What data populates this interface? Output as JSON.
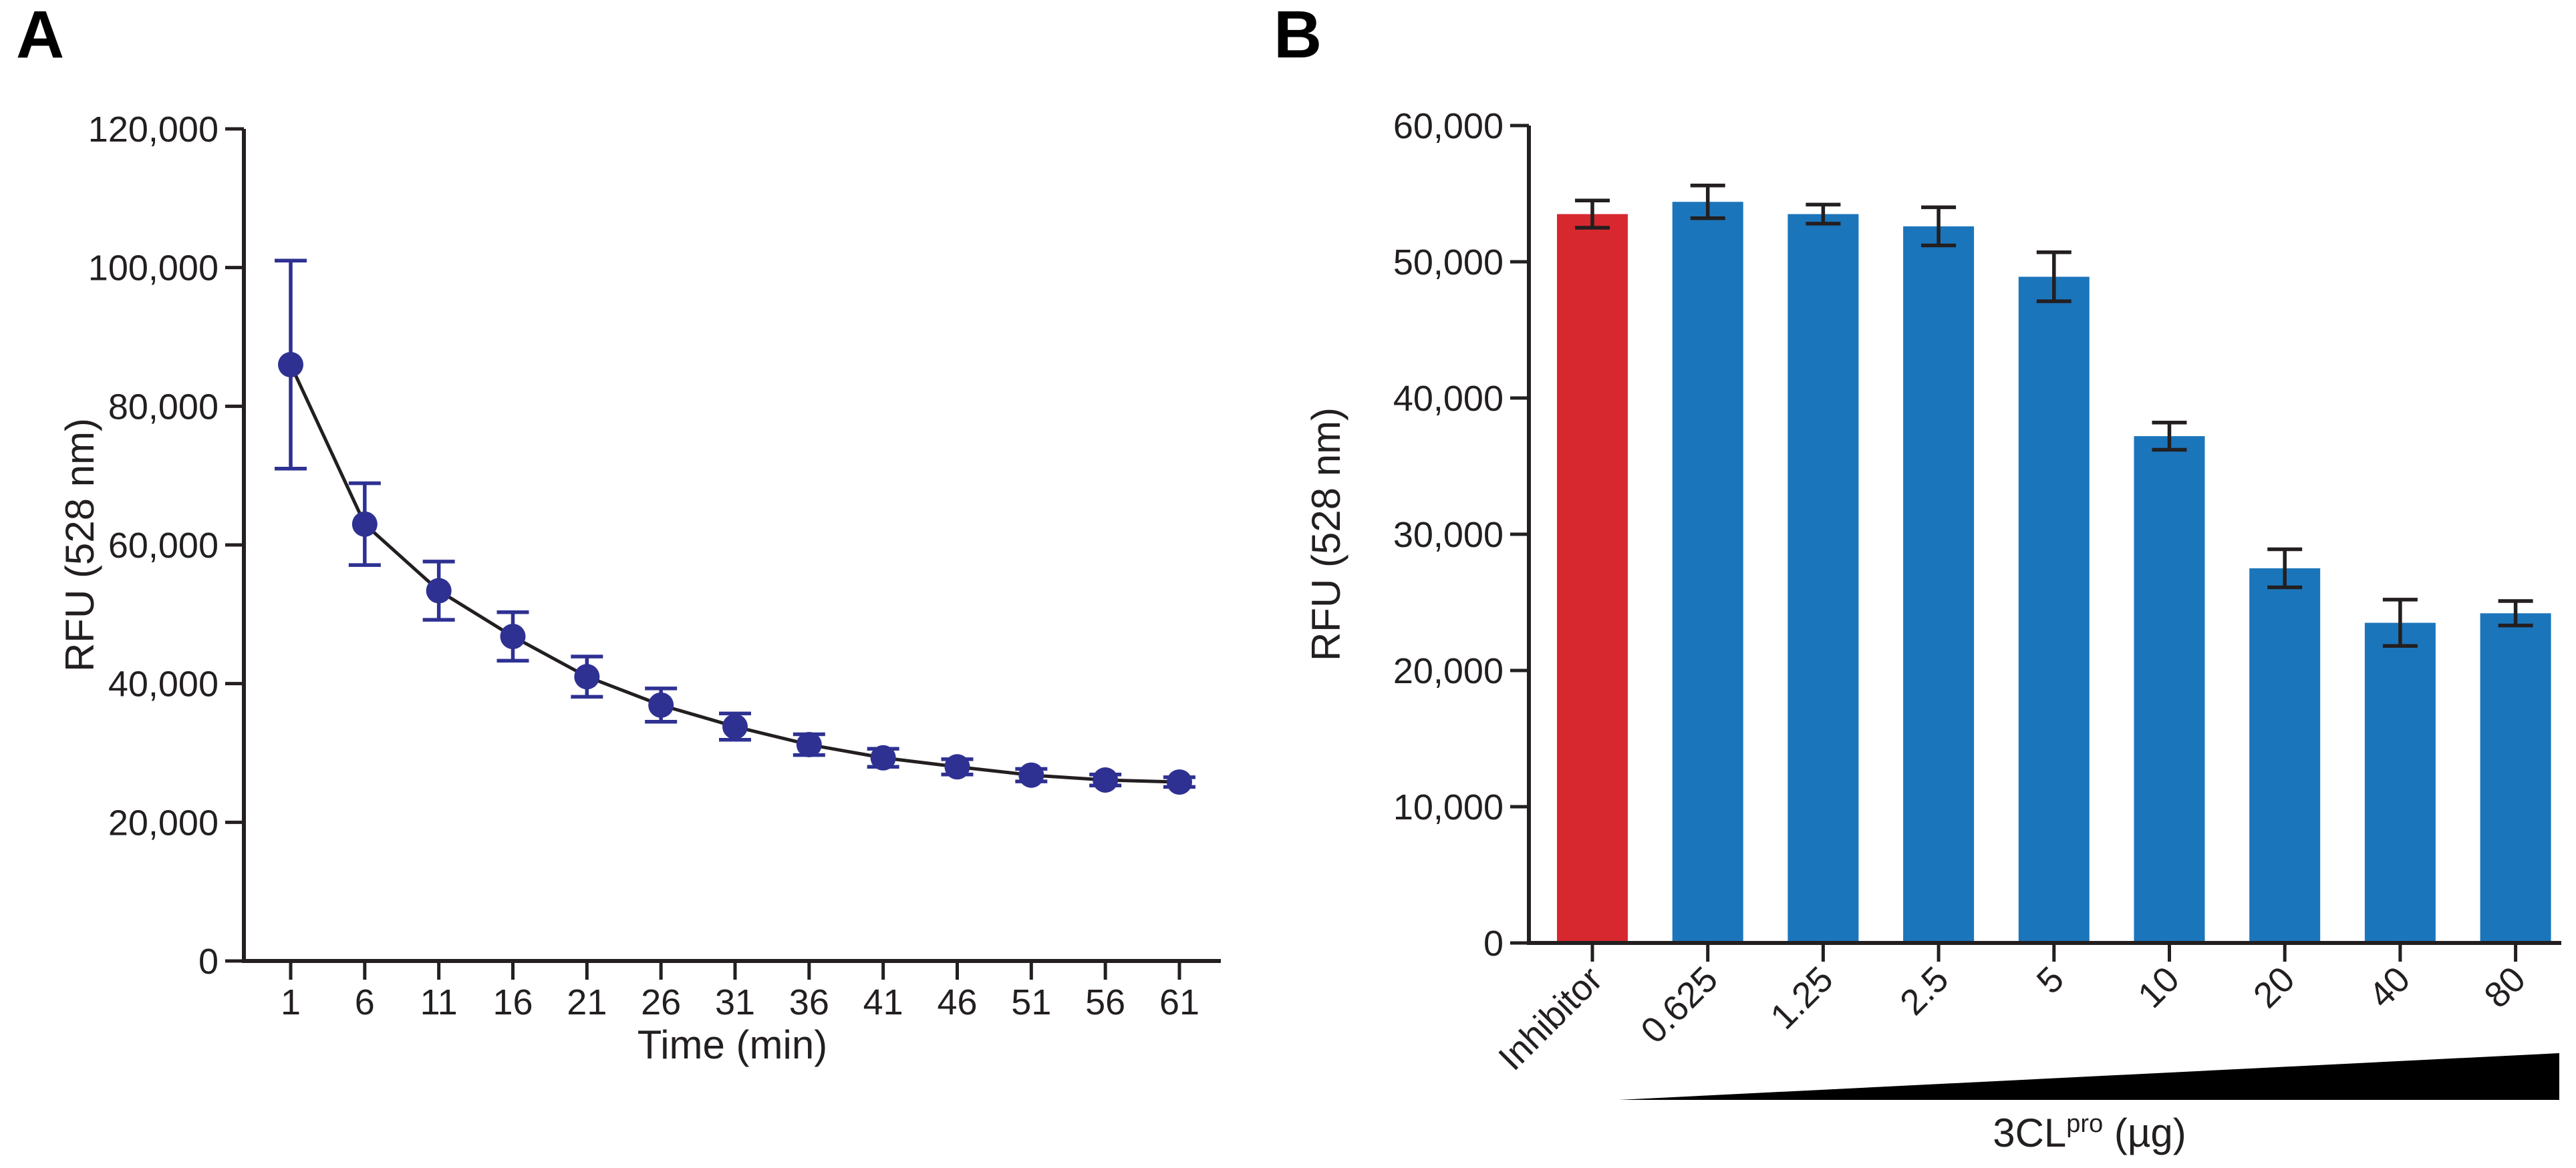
{
  "panels": [
    {
      "label": "A"
    },
    {
      "label": "B"
    }
  ],
  "colors": {
    "axis": "#231f20",
    "text": "#231f20",
    "panel_a_marker": "#2e3192",
    "panel_a_error": "#2e3192",
    "panel_a_line": "#231f20",
    "panel_b_bar_default": "#1b75bb",
    "panel_b_bar_inhibitor": "#d7282f",
    "panel_b_error": "#231f20",
    "wedge": "#000000"
  },
  "chart_data": [
    {
      "type": "line",
      "panel": "A",
      "title": "",
      "xlabel": "Time (min)",
      "ylabel": "RFU (528 nm)",
      "x": [
        1,
        6,
        11,
        16,
        21,
        26,
        31,
        36,
        41,
        46,
        51,
        56,
        61
      ],
      "y": [
        86000,
        63000,
        53400,
        46800,
        41000,
        36900,
        33800,
        31200,
        29300,
        28000,
        26800,
        26100,
        25800
      ],
      "yerr": [
        15000,
        5900,
        4200,
        3500,
        2900,
        2400,
        1900,
        1500,
        1300,
        1100,
        900,
        800,
        700
      ],
      "xtick_labels": [
        "1",
        "6",
        "11",
        "16",
        "21",
        "26",
        "31",
        "36",
        "41",
        "46",
        "51",
        "56",
        "61"
      ],
      "yticks": [
        0,
        20000,
        40000,
        60000,
        80000,
        100000,
        120000
      ],
      "ytick_labels": [
        "0",
        "20,000",
        "40,000",
        "60,000",
        "80,000",
        "100,000",
        "120,000"
      ],
      "ylim": [
        0,
        120000
      ],
      "grid": false,
      "legend": null,
      "marker": "circle"
    },
    {
      "type": "bar",
      "panel": "B",
      "title": "",
      "xlabel_parts": {
        "base": "3CL",
        "sup": "pro",
        "suffix": " (µg)"
      },
      "ylabel": "RFU (528 nm)",
      "categories": [
        "Inhibitor",
        "0.625",
        "1.25",
        "2.5",
        "5",
        "10",
        "20",
        "40",
        "80"
      ],
      "values": [
        53500,
        54400,
        53500,
        52600,
        48900,
        37200,
        27500,
        23500,
        24200
      ],
      "errors": [
        1000,
        1200,
        700,
        1400,
        1800,
        1000,
        1400,
        1700,
        900
      ],
      "highlight_index": 0,
      "yticks": [
        0,
        10000,
        20000,
        30000,
        40000,
        50000,
        60000
      ],
      "ytick_labels": [
        "0",
        "10,000",
        "20,000",
        "30,000",
        "40,000",
        "50,000",
        "60,000"
      ],
      "ylim": [
        0,
        60000
      ],
      "grid": false,
      "legend": null,
      "annotation": "increasing-concentration-wedge"
    }
  ]
}
